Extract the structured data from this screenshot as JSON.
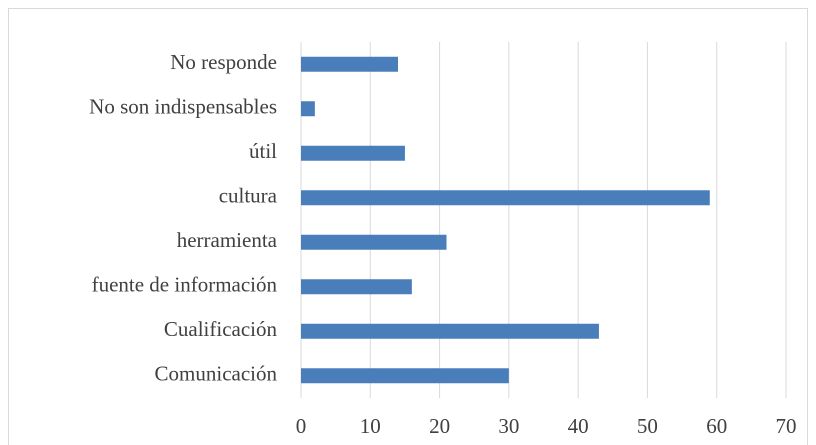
{
  "chart_data": {
    "type": "hbar",
    "categories": [
      "No responde",
      "No son indispensables",
      "útil",
      "cultura",
      "herramienta",
      "fuente de información",
      "Cualificación",
      "Comunicación"
    ],
    "values": [
      14,
      2,
      15,
      59,
      21,
      16,
      43,
      30
    ],
    "color": "#4a7ebb",
    "xlim": [
      0,
      70
    ],
    "xticks": [
      0,
      10,
      20,
      30,
      40,
      50,
      60,
      70
    ],
    "grid": true
  }
}
